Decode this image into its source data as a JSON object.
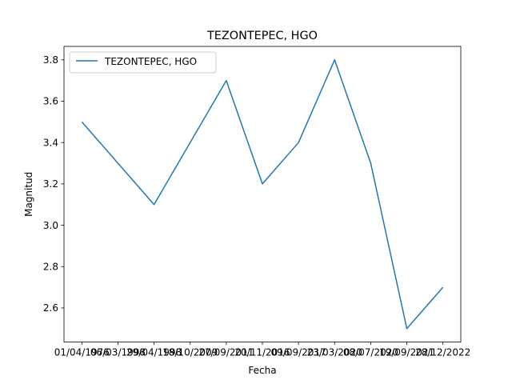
{
  "chart_data": {
    "type": "line",
    "title": "TEZONTEPEC, HGO",
    "xlabel": "Fecha",
    "ylabel": "Magnitud",
    "x": [
      "01/04/1976",
      "06/03/1998",
      "29/04/1998",
      "18/10/2009",
      "27/09/2011",
      "20/11/2016",
      "09/09/2017",
      "23/03/2020",
      "08/07/2020",
      "19/09/2021",
      "28/12/2022"
    ],
    "series": [
      {
        "name": "TEZONTEPEC, HGO",
        "color": "#1f77b4",
        "values": [
          3.5,
          3.3,
          3.1,
          3.4,
          3.7,
          3.2,
          3.4,
          3.8,
          3.3,
          2.5,
          2.7
        ]
      }
    ],
    "ylim": [
      2.435,
      3.865
    ],
    "yticks": [
      "2.6",
      "2.8",
      "3.0",
      "3.2",
      "3.4",
      "3.6",
      "3.8"
    ],
    "grid": false,
    "legend": "upper-left"
  }
}
